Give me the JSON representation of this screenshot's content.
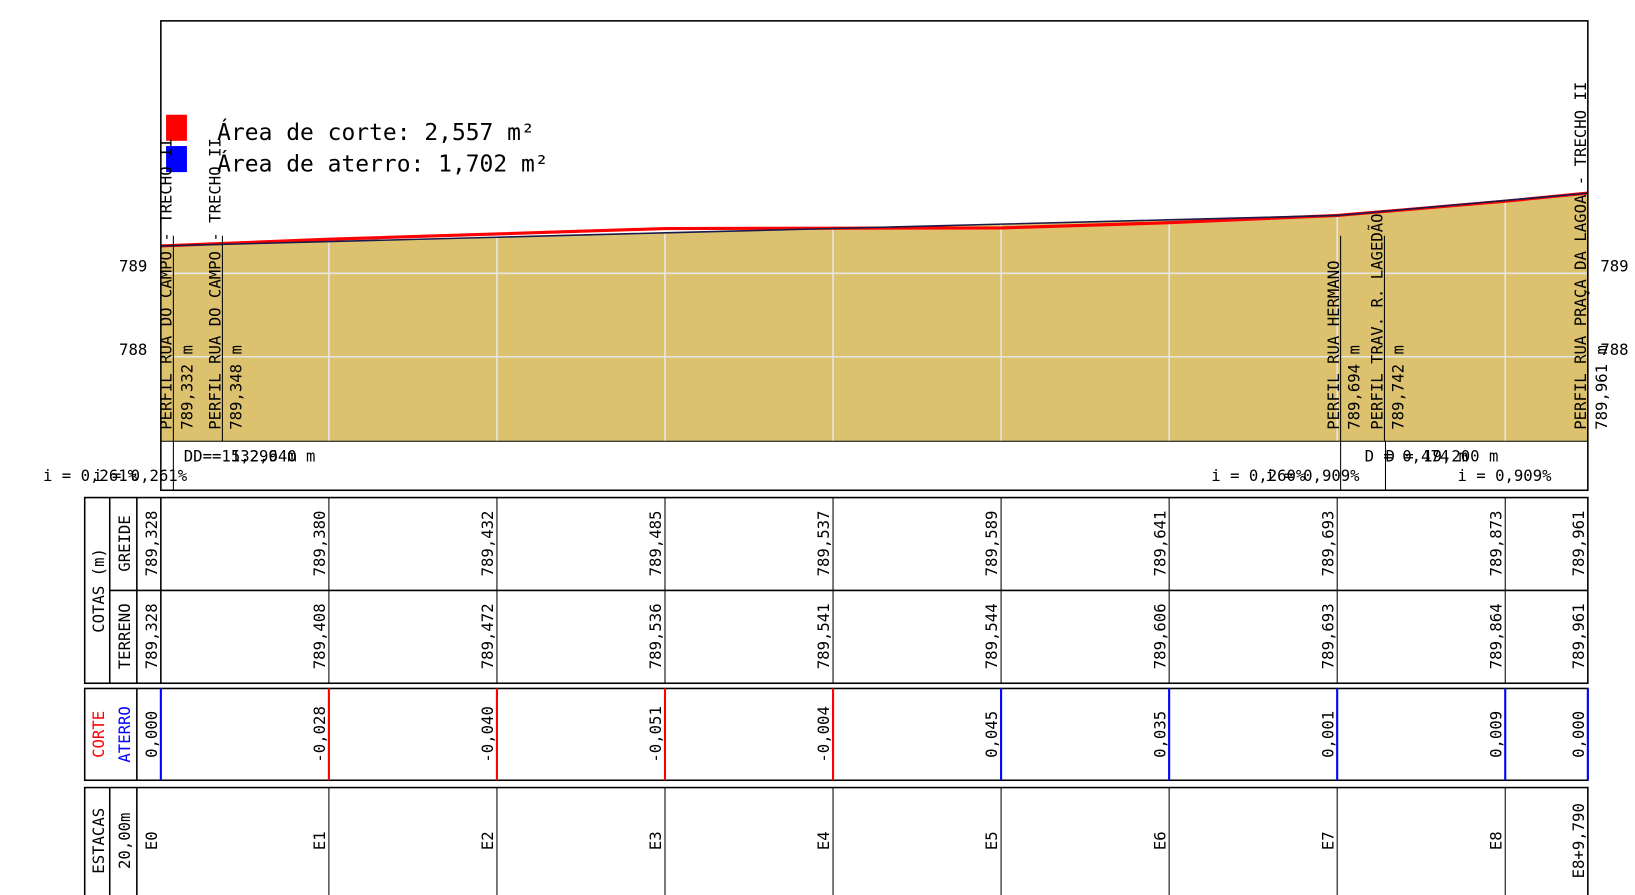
{
  "legend": {
    "cut": "Área de corte: 2,557 m²",
    "fill": "Área de aterro: 1,702 m²"
  },
  "elevation_ticks": [
    789,
    788
  ],
  "profiles": [
    {
      "name": "PERFIL RUA DO CAMPO - TRECHO II",
      "elevation": "789,332 m"
    },
    {
      "name": "PERFIL RUA DO CAMPO - TRECHO II",
      "elevation": "789,348 m"
    },
    {
      "name": "PERFIL RUA HERMANO",
      "elevation": "789,694 m"
    },
    {
      "name": "PERFIL TRAV. R. LAGEDÃO",
      "elevation": "789,742 m"
    },
    {
      "name": "PERFIL RUA PRAÇA DA LAGOA - TRECHO II",
      "elevation": "789,961 m"
    }
  ],
  "slope_notes": [
    "D = 15,296 m",
    "D = 132,940 m",
    "i = 0,261%",
    "i = 0,261%",
    "i = 0,260%",
    "i = 0,909%",
    "D = 0,474 m",
    "D = 19,200 m",
    "i = 0,909%"
  ],
  "table": {
    "cotas": "COTAS (m)",
    "greide": "GREIDE",
    "terreno": "TERRENO",
    "corte": "CORTE",
    "aterro": "ATERRO",
    "estacas": "ESTACAS",
    "spacing": "20,00m"
  },
  "stations": [
    {
      "name": "E0",
      "greide": "789,328",
      "terreno": "789,328",
      "diff": "0,000"
    },
    {
      "name": "E1",
      "greide": "789,380",
      "terreno": "789,408",
      "diff": "-0,028"
    },
    {
      "name": "E2",
      "greide": "789,432",
      "terreno": "789,472",
      "diff": "-0,040"
    },
    {
      "name": "E3",
      "greide": "789,485",
      "terreno": "789,536",
      "diff": "-0,051"
    },
    {
      "name": "E4",
      "greide": "789,537",
      "terreno": "789,541",
      "diff": "-0,004"
    },
    {
      "name": "E5",
      "greide": "789,589",
      "terreno": "789,544",
      "diff": "0,045"
    },
    {
      "name": "E6",
      "greide": "789,641",
      "terreno": "789,606",
      "diff": "0,035"
    },
    {
      "name": "E7",
      "greide": "789,693",
      "terreno": "789,693",
      "diff": "0,001"
    },
    {
      "name": "E8",
      "greide": "789,873",
      "terreno": "789,864",
      "diff": "0,009"
    },
    {
      "name": "E8+9,790",
      "greide": "789,961",
      "terreno": "789,961",
      "diff": "0,000"
    }
  ]
}
